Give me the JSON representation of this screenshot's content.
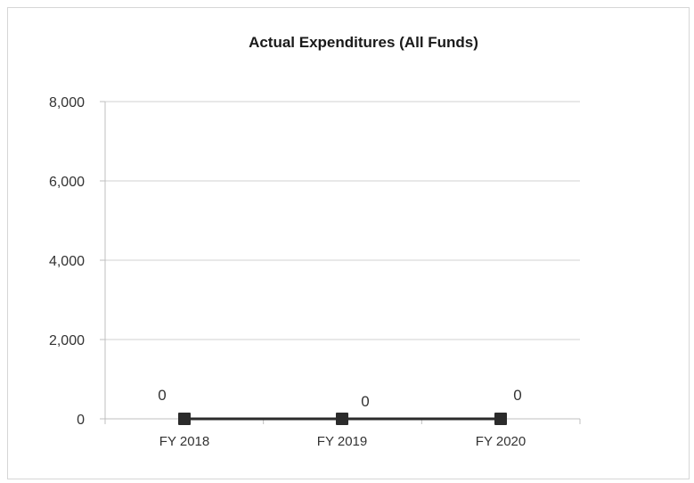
{
  "chart_data": {
    "type": "line",
    "title": "Actual Expenditures (All Funds)",
    "xlabel": "",
    "ylabel": "",
    "categories": [
      "FY 2018",
      "FY 2019",
      "FY 2020"
    ],
    "series": [
      {
        "values": [
          0,
          0,
          0
        ],
        "color": "#2b2b2b",
        "marker": "square"
      }
    ],
    "data_labels": [
      "0",
      "0",
      "0"
    ],
    "ylim": [
      0,
      8000
    ],
    "yticks": [
      0,
      2000,
      4000,
      6000,
      8000
    ],
    "ytick_labels": [
      "0",
      "2,000",
      "4,000",
      "6,000",
      "8,000"
    ],
    "grid": true,
    "legend": "none",
    "colors": {
      "gridline": "#d0d0d0",
      "axis": "#bfbfbf",
      "line": "#2b2b2b"
    }
  }
}
